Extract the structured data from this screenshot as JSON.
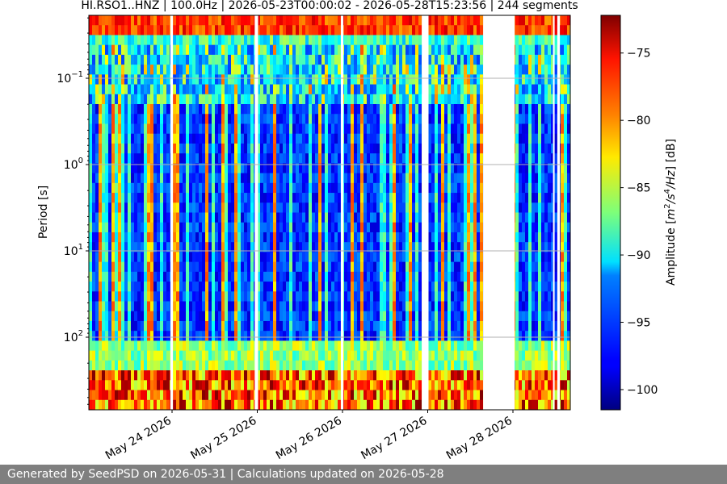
{
  "chart_data": {
    "type": "heatmap",
    "title": "HI.RSO1..HNZ | 100.0Hz | 2026-05-23T00:00:02 - 2026-05-28T15:23:56 | 244 segments",
    "ylabel": "Period [s]",
    "y_scale": "log",
    "y_inverted": true,
    "y_ticks": [
      {
        "value": 0.1,
        "base": "10",
        "exp": "−1"
      },
      {
        "value": 1,
        "base": "10",
        "exp": "0"
      },
      {
        "value": 10,
        "base": "10",
        "exp": "1"
      },
      {
        "value": 100,
        "base": "10",
        "exp": "2"
      }
    ],
    "x_ticks": [
      "May 24 2026",
      "May 25 2026",
      "May 26 2026",
      "May 27 2026",
      "May 28 2026"
    ],
    "colorbar": {
      "label_parts": {
        "pre": "Amplitude [",
        "m": "m",
        "two": "2",
        "s": "/s",
        "four": "4",
        "hz": "/Hz",
        "post": "] [dB]"
      },
      "ticks": [
        -75,
        -80,
        -85,
        -90,
        -95,
        -100
      ],
      "range": [
        -101.5,
        -72.2
      ],
      "colormap": "jet"
    },
    "gaps_days": [
      [
        0.98,
        1.01
      ],
      [
        1.97,
        2.01
      ],
      [
        2.98,
        3.01
      ],
      [
        3.93,
        4.01
      ],
      [
        4.65,
        5.02
      ],
      [
        5.47,
        5.48
      ],
      [
        5.52,
        5.55
      ]
    ],
    "grid": true
  },
  "footer": "Generated by SeedPSD on 2026-05-31 | Calculations updated on 2026-05-28"
}
